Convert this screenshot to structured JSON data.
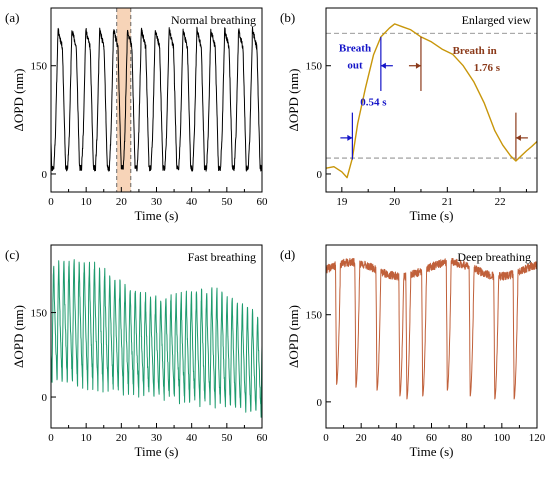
{
  "colors": {
    "panel_a": "#000000",
    "panel_b": "#c8960a",
    "panel_c": "#1e9b6e",
    "panel_d": "#c0603a",
    "highlight_band": "#f5c9a6",
    "annot_blue": "#1414c8",
    "annot_brown": "#8b3a1a",
    "dashed_ref": "#777777"
  },
  "chart_data": [
    {
      "id": "a",
      "type": "line",
      "panel_label": "(a)",
      "title": "Normal breathing",
      "xlabel": "Time (s)",
      "ylabel": "ΔOPD (nm)",
      "xlim": [
        0,
        60
      ],
      "ylim": [
        -25,
        230
      ],
      "xticks": [
        0,
        10,
        20,
        30,
        40,
        50,
        60
      ],
      "xtick_labels": [
        "0",
        "10",
        "20",
        "30",
        "40",
        "50",
        "60"
      ],
      "yticks": [
        0,
        150
      ],
      "ytick_labels": [
        "0",
        "150"
      ],
      "minor_xticks": [
        5,
        15,
        25,
        35,
        45,
        55
      ],
      "grid": false,
      "highlight_x": [
        18.7,
        22.7
      ],
      "wave": {
        "period": 3.95,
        "start": 0.8,
        "min": 8,
        "max": 200,
        "jitter": 8
      },
      "series": [
        {
          "values": []
        }
      ]
    },
    {
      "id": "b",
      "type": "line",
      "panel_label": "(b)",
      "title": "Enlarged view",
      "xlabel": "Time (s)",
      "ylabel": "ΔOPD (nm)",
      "xlim": [
        18.7,
        22.7
      ],
      "ylim": [
        -25,
        230
      ],
      "xticks": [
        19,
        20,
        21,
        22
      ],
      "xtick_labels": [
        "19",
        "20",
        "21",
        "22"
      ],
      "yticks": [
        0,
        150
      ],
      "ytick_labels": [
        "0",
        "150"
      ],
      "minor_xticks": [
        19.5,
        20.5,
        21.5,
        22.5
      ],
      "grid": false,
      "reference_lines_y": [
        22,
        195
      ],
      "series": [
        {
          "x": [
            18.7,
            18.85,
            19.0,
            19.1,
            19.2,
            19.3,
            19.45,
            19.6,
            19.74,
            19.9,
            20.0,
            20.15,
            20.3,
            20.5,
            20.7,
            20.9,
            21.1,
            21.3,
            21.5,
            21.7,
            21.9,
            22.05,
            22.2,
            22.3,
            22.4,
            22.5,
            22.6,
            22.7
          ],
          "y": [
            8,
            10,
            3,
            -5,
            22,
            70,
            120,
            165,
            190,
            202,
            208,
            204,
            200,
            190,
            183,
            173,
            166,
            150,
            128,
            98,
            60,
            40,
            25,
            18,
            25,
            32,
            38,
            45
          ]
        }
      ],
      "annotations": [
        {
          "text": "Breath",
          "color": "blue"
        },
        {
          "text": "out",
          "color": "blue"
        },
        {
          "text": "0.54 s",
          "color": "blue"
        },
        {
          "text": "Breath in",
          "color": "brown"
        },
        {
          "text": "1.76 s",
          "color": "brown"
        }
      ],
      "arrows": [
        {
          "color": "blue",
          "x": 19.2,
          "y": 50,
          "dir": "right"
        },
        {
          "color": "blue",
          "x": 19.74,
          "y": 150,
          "dir": "left"
        },
        {
          "color": "brown",
          "x": 20.5,
          "y": 150,
          "dir": "right"
        },
        {
          "color": "brown",
          "x": 22.3,
          "y": 50,
          "dir": "left"
        }
      ],
      "markers": [
        {
          "color": "blue",
          "x": 19.2,
          "y0": 20,
          "y1": 85
        },
        {
          "color": "blue",
          "x": 19.74,
          "y0": 115,
          "y1": 190
        },
        {
          "color": "brown",
          "x": 20.5,
          "y0": 115,
          "y1": 190
        },
        {
          "color": "brown",
          "x": 22.3,
          "y0": 20,
          "y1": 85
        }
      ]
    },
    {
      "id": "c",
      "type": "line",
      "panel_label": "(c)",
      "title": "Fast breathing",
      "xlabel": "Time (s)",
      "ylabel": "ΔOPD (nm)",
      "xlim": [
        0,
        60
      ],
      "ylim": [
        -55,
        270
      ],
      "xticks": [
        0,
        10,
        20,
        30,
        40,
        50,
        60
      ],
      "xtick_labels": [
        "0",
        "10",
        "20",
        "30",
        "40",
        "50",
        "60"
      ],
      "yticks": [
        0,
        150
      ],
      "ytick_labels": [
        "0",
        "150"
      ],
      "minor_xticks": [
        5,
        15,
        25,
        35,
        45,
        55
      ],
      "grid": false,
      "wave": {
        "period": 1.45,
        "start": 0.3,
        "min_start": 30,
        "min_end": -30,
        "max_start": 235,
        "max_end": 150,
        "jitter": 15
      },
      "series": [
        {
          "values": []
        }
      ]
    },
    {
      "id": "d",
      "type": "line",
      "panel_label": "(d)",
      "title": "Deep breathing",
      "xlabel": "Time (s)",
      "ylabel": "ΔOPD (nm)",
      "xlim": [
        0,
        120
      ],
      "ylim": [
        -45,
        270
      ],
      "xticks": [
        0,
        20,
        40,
        60,
        80,
        100,
        120
      ],
      "xtick_labels": [
        "0",
        "20",
        "40",
        "60",
        "80",
        "100",
        "120"
      ],
      "yticks": [
        0,
        150
      ],
      "ytick_labels": [
        "0",
        "150"
      ],
      "minor_xticks": [
        10,
        30,
        50,
        70,
        90,
        110
      ],
      "grid": false,
      "dips_x": [
        6,
        17,
        29,
        42,
        46,
        55,
        69,
        82,
        96,
        107
      ],
      "dips_y": [
        30,
        25,
        20,
        10,
        5,
        10,
        20,
        10,
        5,
        5
      ],
      "plateau": 228,
      "series": [
        {
          "values": []
        }
      ]
    }
  ]
}
